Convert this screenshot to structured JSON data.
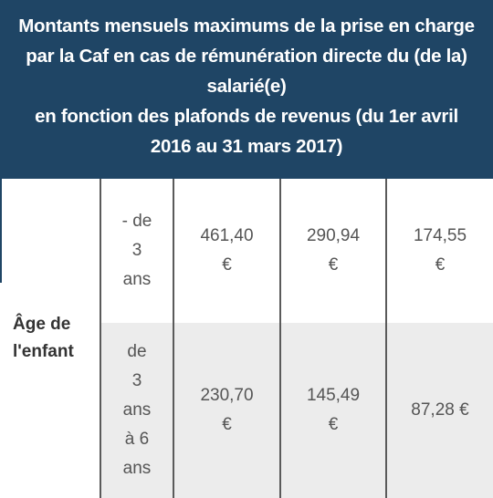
{
  "header": {
    "title_lines": [
      "Montants mensuels maximums de la prise en charge par la Caf en cas de rémunération directe du (de la) salarié(e)",
      "en fonction des plafonds de revenus (du 1er avril 2016 au 31 mars 2017)"
    ]
  },
  "table": {
    "row_header": "Âge de l'enfant",
    "rows": [
      [
        "- de 3 ans",
        "461,40 €",
        "290,94 €",
        "174,55 €"
      ],
      [
        "de 3 ans à 6 ans",
        "230,70 €",
        "145,49 €",
        "87,28 €"
      ]
    ]
  }
}
